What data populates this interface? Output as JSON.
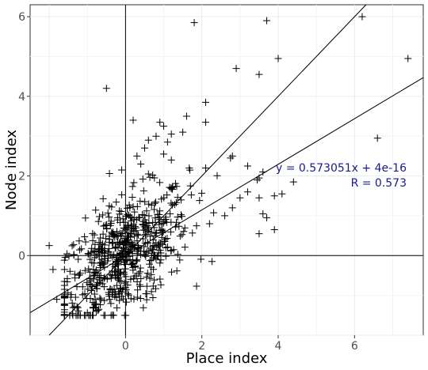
{
  "chart_data": {
    "type": "scatter",
    "title": "",
    "xlabel": "Place index",
    "ylabel": "Node index",
    "xlim": [
      -2.5,
      7.8
    ],
    "ylim": [
      -2.0,
      6.3
    ],
    "xticks": [
      {
        "v": 0,
        "label": "0"
      },
      {
        "v": 2,
        "label": "2"
      },
      {
        "v": 4,
        "label": "4"
      },
      {
        "v": 6,
        "label": "6"
      }
    ],
    "yticks": [
      {
        "v": 0,
        "label": "0"
      },
      {
        "v": 2,
        "label": "2"
      },
      {
        "v": 4,
        "label": "4"
      },
      {
        "v": 6,
        "label": "6"
      }
    ],
    "grid": true,
    "marker": "+",
    "marker_color": "#000000",
    "lines": [
      {
        "slope": 0.573051,
        "intercept": 0.0,
        "color": "#000000"
      },
      {
        "slope": 1.0,
        "intercept": 0.0,
        "color": "#000000"
      }
    ],
    "annotations": [
      "y = 0.573051x + 4e-16",
      "R = 0.573"
    ],
    "annotation_color": "#1a1a8c",
    "points": [
      [
        6.2,
        6.0
      ],
      [
        7.4,
        4.95
      ],
      [
        6.6,
        2.95
      ],
      [
        3.7,
        5.9
      ],
      [
        4.0,
        4.95
      ],
      [
        2.9,
        4.7
      ],
      [
        3.5,
        4.55
      ],
      [
        1.8,
        5.85
      ],
      [
        -0.5,
        4.2
      ],
      [
        2.1,
        3.85
      ],
      [
        2.1,
        3.35
      ],
      [
        2.8,
        2.5
      ],
      [
        2.75,
        2.45
      ],
      [
        2.1,
        2.2
      ],
      [
        3.2,
        2.25
      ],
      [
        3.6,
        2.1
      ],
      [
        3.5,
        1.95
      ],
      [
        3.45,
        1.9
      ],
      [
        4.4,
        1.85
      ],
      [
        3.5,
        1.45
      ],
      [
        3.9,
        1.5
      ],
      [
        4.1,
        1.55
      ],
      [
        3.6,
        1.05
      ],
      [
        3.7,
        0.95
      ],
      [
        3.5,
        0.55
      ],
      [
        3.9,
        0.65
      ],
      [
        3.0,
        1.45
      ],
      [
        2.8,
        1.2
      ],
      [
        3.2,
        1.6
      ],
      [
        2.6,
        1.0
      ],
      [
        2.2,
        0.8
      ],
      [
        0.2,
        3.4
      ],
      [
        0.9,
        3.35
      ],
      [
        1.0,
        3.25
      ],
      [
        0.8,
        3.0
      ],
      [
        1.2,
        3.05
      ],
      [
        1.6,
        3.5
      ],
      [
        0.6,
        2.9
      ],
      [
        0.5,
        2.7
      ],
      [
        1.1,
        2.85
      ],
      [
        1.5,
        3.1
      ],
      [
        0.3,
        2.5
      ],
      [
        1.2,
        2.4
      ],
      [
        1.0,
        2.55
      ],
      [
        0.4,
        2.3
      ],
      [
        -0.1,
        2.15
      ],
      [
        0.6,
        2.05
      ],
      [
        1.7,
        1.75
      ],
      [
        -2.0,
        0.25
      ],
      [
        -1.8,
        -1.1
      ],
      [
        -1.9,
        -0.35
      ],
      [
        -1.6,
        -0.75
      ]
    ]
  }
}
